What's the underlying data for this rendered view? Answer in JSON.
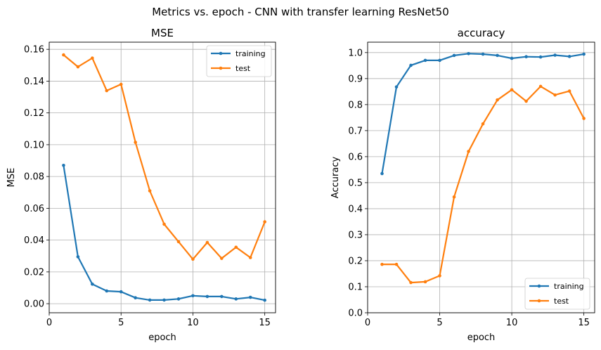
{
  "suptitle": "Metrics vs. epoch - CNN with transfer learning ResNet50",
  "colors": {
    "training": "#1f77b4",
    "test": "#ff7f0e",
    "grid": "#b0b0b0"
  },
  "chart_data": [
    {
      "type": "line",
      "title": "MSE",
      "xlabel": "epoch",
      "ylabel": "MSE",
      "xlim": [
        0,
        15.75
      ],
      "ylim": [
        -0.0057,
        0.1645
      ],
      "xticks": [
        0,
        5,
        10,
        15
      ],
      "yticks": [
        0.0,
        0.02,
        0.04,
        0.06,
        0.08,
        0.1,
        0.12,
        0.14,
        0.16
      ],
      "ytick_labels": [
        "0.00",
        "0.02",
        "0.04",
        "0.06",
        "0.08",
        "0.10",
        "0.12",
        "0.14",
        "0.16"
      ],
      "grid": true,
      "legend_position": "upper right",
      "x": [
        1,
        2,
        3,
        4,
        5,
        6,
        7,
        8,
        9,
        10,
        11,
        12,
        13,
        14,
        15
      ],
      "series": [
        {
          "name": "training",
          "color": "#1f77b4",
          "values": [
            0.087,
            0.0295,
            0.0123,
            0.008,
            0.0075,
            0.0037,
            0.0023,
            0.0023,
            0.003,
            0.005,
            0.0045,
            0.0045,
            0.003,
            0.004,
            0.0022
          ]
        },
        {
          "name": "test",
          "color": "#ff7f0e",
          "values": [
            0.1565,
            0.149,
            0.1545,
            0.134,
            0.138,
            0.1015,
            0.071,
            0.05,
            0.039,
            0.028,
            0.0385,
            0.0285,
            0.0355,
            0.029,
            0.0515
          ]
        }
      ]
    },
    {
      "type": "line",
      "title": "accuracy",
      "xlabel": "epoch",
      "ylabel": "Accuracy",
      "xlim": [
        0,
        15.75
      ],
      "ylim": [
        0,
        1.04
      ],
      "xticks": [
        0,
        5,
        10,
        15
      ],
      "yticks": [
        0.0,
        0.1,
        0.2,
        0.3,
        0.4,
        0.5,
        0.6,
        0.7,
        0.8,
        0.9,
        1.0
      ],
      "ytick_labels": [
        "0.0",
        "0.1",
        "0.2",
        "0.3",
        "0.4",
        "0.5",
        "0.6",
        "0.7",
        "0.8",
        "0.9",
        "1.0"
      ],
      "grid": true,
      "legend_position": "lower right",
      "x": [
        1,
        2,
        3,
        4,
        5,
        6,
        7,
        8,
        9,
        10,
        11,
        12,
        13,
        14,
        15
      ],
      "series": [
        {
          "name": "training",
          "color": "#1f77b4",
          "values": [
            0.535,
            0.868,
            0.951,
            0.97,
            0.97,
            0.989,
            0.996,
            0.994,
            0.989,
            0.978,
            0.984,
            0.983,
            0.99,
            0.985,
            0.994
          ]
        },
        {
          "name": "test",
          "color": "#ff7f0e",
          "values": [
            0.186,
            0.186,
            0.116,
            0.119,
            0.142,
            0.445,
            0.62,
            0.726,
            0.818,
            0.857,
            0.813,
            0.87,
            0.837,
            0.852,
            0.747
          ]
        }
      ]
    }
  ]
}
